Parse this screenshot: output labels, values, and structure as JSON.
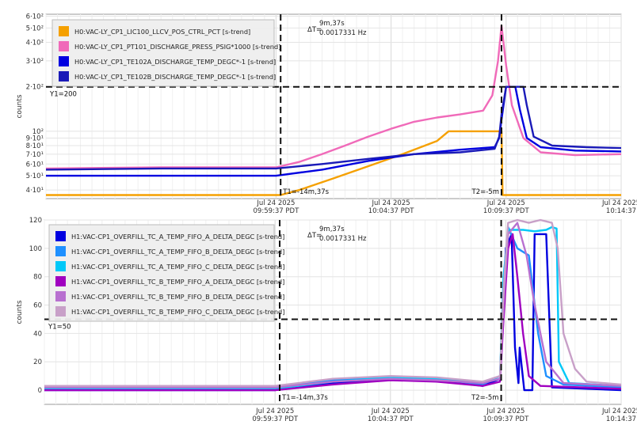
{
  "chart_data": [
    {
      "type": "line",
      "ylabel": "counts",
      "yscale": "log",
      "ylim": [
        35,
        620
      ],
      "x_ticks": [
        {
          "t": 20,
          "date": "Jul 24 2025",
          "time": "09:59:37 PDT"
        },
        {
          "t": 30,
          "date": "Jul 24 2025",
          "time": "10:04:37 PDT"
        },
        {
          "t": 40,
          "date": "Jul 24 2025",
          "time": "10:09:37 PDT"
        },
        {
          "t": 50,
          "date": "Jul 24 2025",
          "time": "10:14:37"
        }
      ],
      "y_ticks": [
        {
          "v": 40,
          "label": "4·10¹"
        },
        {
          "v": 50,
          "label": "5·10¹"
        },
        {
          "v": 60,
          "label": "6·10¹"
        },
        {
          "v": 70,
          "label": "7·10¹"
        },
        {
          "v": 80,
          "label": "8·10¹"
        },
        {
          "v": 90,
          "label": "9·10¹"
        },
        {
          "v": 100,
          "label": "10²"
        },
        {
          "v": 200,
          "label": "2·10²"
        },
        {
          "v": 300,
          "label": "3·10²"
        },
        {
          "v": 400,
          "label": "4·10²"
        },
        {
          "v": 500,
          "label": "5·10²"
        },
        {
          "v": 600,
          "label": "6·10²"
        }
      ],
      "grid": true,
      "legend_position": "top-left",
      "cursors": {
        "y1": {
          "value": 200,
          "label": "Y1=200"
        },
        "t1": {
          "t": 20.4,
          "label": "T1=-14m,37s"
        },
        "t2": {
          "t": 39.6,
          "label": "T2=-5m"
        },
        "delta_label": "ΔT=",
        "delta_time": "9m,37s",
        "delta_freq": "0.0017331 Hz"
      },
      "series": [
        {
          "name": "H0:VAC-LY_CP1_LIC100_LLCV_POS_CTRL_PCT [s-trend]",
          "color": "#f5a000",
          "points": [
            [
              0,
              37
            ],
            [
              20.4,
              37
            ],
            [
              22,
              40
            ],
            [
              25,
              48
            ],
            [
              28,
              58
            ],
            [
              31,
              70
            ],
            [
              34,
              86
            ],
            [
              35,
              100
            ],
            [
              39.6,
              100
            ],
            [
              39.7,
              37
            ],
            [
              50,
              37
            ]
          ]
        },
        {
          "name": "H0:VAC-LY_CP1_PT101_DISCHARGE_PRESS_PSIG*1000 [s-trend]",
          "color": "#f06ab9",
          "points": [
            [
              0,
              56
            ],
            [
              10,
              57
            ],
            [
              20,
              57
            ],
            [
              22,
              62
            ],
            [
              24,
              70
            ],
            [
              26,
              80
            ],
            [
              28,
              92
            ],
            [
              30,
              104
            ],
            [
              32,
              116
            ],
            [
              34,
              124
            ],
            [
              36,
              130
            ],
            [
              38,
              138
            ],
            [
              38.8,
              175
            ],
            [
              39.3,
              300
            ],
            [
              39.6,
              520
            ],
            [
              40,
              280
            ],
            [
              40.5,
              150
            ],
            [
              41.5,
              90
            ],
            [
              43,
              72
            ],
            [
              46,
              69
            ],
            [
              50,
              70
            ]
          ]
        },
        {
          "name": "H0:VAC-LY_CP1_TE102A_DISCHARGE_TEMP_DEGC*-1 [s-trend]",
          "color": "#0000e0",
          "points": [
            [
              0,
              50
            ],
            [
              10,
              50
            ],
            [
              20,
              50
            ],
            [
              24,
              55
            ],
            [
              28,
              63
            ],
            [
              32,
              70
            ],
            [
              36,
              75
            ],
            [
              39,
              78
            ],
            [
              39.4,
              90
            ],
            [
              39.6,
              120
            ],
            [
              40,
              200
            ],
            [
              40.8,
              200
            ],
            [
              41.2,
              140
            ],
            [
              41.8,
              90
            ],
            [
              43,
              78
            ],
            [
              46,
              74
            ],
            [
              50,
              73
            ]
          ]
        },
        {
          "name": "H0:VAC-LY_CP1_TE102B_DISCHARGE_TEMP_DEGC*-1 [s-trend]",
          "color": "#1a1ab8",
          "points": [
            [
              0,
              55
            ],
            [
              10,
              56
            ],
            [
              20,
              56
            ],
            [
              24,
              60
            ],
            [
              28,
              65
            ],
            [
              32,
              70
            ],
            [
              36,
              72
            ],
            [
              39,
              76
            ],
            [
              39.4,
              92
            ],
            [
              39.6,
              130
            ],
            [
              40,
              200
            ],
            [
              41.5,
              200
            ],
            [
              41.8,
              150
            ],
            [
              42.4,
              92
            ],
            [
              44,
              80
            ],
            [
              47,
              78
            ],
            [
              50,
              77
            ]
          ]
        }
      ]
    },
    {
      "type": "line",
      "ylabel": "counts",
      "ylim": [
        -10,
        120
      ],
      "x_ticks": [
        {
          "t": 20,
          "date": "Jul 24 2025",
          "time": "09:59:37 PDT"
        },
        {
          "t": 30,
          "date": "Jul 24 2025",
          "time": "10:04:37 PDT"
        },
        {
          "t": 40,
          "date": "Jul 24 2025",
          "time": "10:09:37 PDT"
        },
        {
          "t": 50,
          "date": "Jul 24 2025",
          "time": "10:14:37"
        }
      ],
      "y_ticks": [
        {
          "v": 0,
          "label": "0"
        },
        {
          "v": 20,
          "label": "20"
        },
        {
          "v": 40,
          "label": "40"
        },
        {
          "v": 60,
          "label": "60"
        },
        {
          "v": 80,
          "label": "80"
        },
        {
          "v": 100,
          "label": "100"
        },
        {
          "v": 120,
          "label": "120"
        }
      ],
      "grid": true,
      "legend_position": "top-left",
      "cursors": {
        "y1": {
          "value": 50,
          "label": "Y1=50"
        },
        "t1": {
          "t": 20.4,
          "label": "T1=-14m,37s"
        },
        "t2": {
          "t": 39.6,
          "label": "T2=-5m"
        },
        "delta_label": "ΔT=",
        "delta_time": "9m,37s",
        "delta_freq": "0.0017331 Hz"
      },
      "series": [
        {
          "name": "H1:VAC-CP1_OVERFILL_TC_A_TEMP_FIFO_A_DELTA_DEGC [s-trend]",
          "color": "#0000e0",
          "points": [
            [
              0,
              0
            ],
            [
              20,
              0
            ],
            [
              25,
              5
            ],
            [
              30,
              8
            ],
            [
              34,
              7
            ],
            [
              38,
              3
            ],
            [
              39.5,
              8
            ],
            [
              39.8,
              60
            ],
            [
              40,
              100
            ],
            [
              40.5,
              110
            ],
            [
              40.8,
              30
            ],
            [
              41.1,
              5
            ],
            [
              41.2,
              30
            ],
            [
              41.6,
              0
            ],
            [
              42.3,
              0
            ],
            [
              42.5,
              110
            ],
            [
              43.5,
              110
            ],
            [
              44,
              2
            ],
            [
              50,
              0
            ]
          ]
        },
        {
          "name": "H1:VAC-CP1_OVERFILL_TC_A_TEMP_FIFO_B_DELTA_DEGC [s-trend]",
          "color": "#1e90ff",
          "points": [
            [
              0,
              2
            ],
            [
              20,
              2
            ],
            [
              25,
              7
            ],
            [
              30,
              9
            ],
            [
              34,
              8
            ],
            [
              38,
              4
            ],
            [
              39.5,
              10
            ],
            [
              39.8,
              70
            ],
            [
              40.2,
              115
            ],
            [
              41,
              100
            ],
            [
              42,
              95
            ],
            [
              42.8,
              40
            ],
            [
              43.5,
              10
            ],
            [
              45,
              4
            ],
            [
              50,
              2
            ]
          ]
        },
        {
          "name": "H1:VAC-CP1_OVERFILL_TC_A_TEMP_FIFO_C_DELTA_DEGC [s-trend]",
          "color": "#00c8f8",
          "points": [
            [
              0,
              1
            ],
            [
              20,
              1
            ],
            [
              25,
              6
            ],
            [
              30,
              9
            ],
            [
              34,
              8
            ],
            [
              38,
              5
            ],
            [
              39.5,
              10
            ],
            [
              39.8,
              80
            ],
            [
              40.2,
              113
            ],
            [
              41.5,
              113
            ],
            [
              42.5,
              112
            ],
            [
              43.5,
              113
            ],
            [
              44,
              115
            ],
            [
              44.4,
              114
            ],
            [
              44.6,
              20
            ],
            [
              45.5,
              5
            ],
            [
              50,
              3
            ]
          ]
        },
        {
          "name": "H1:VAC-CP1_OVERFILL_TC_B_TEMP_FIFO_A_DELTA_DEGC [s-trend]",
          "color": "#a000c0",
          "points": [
            [
              0,
              0
            ],
            [
              20,
              0
            ],
            [
              25,
              4
            ],
            [
              30,
              7
            ],
            [
              34,
              6
            ],
            [
              38,
              3
            ],
            [
              39.5,
              6
            ],
            [
              39.8,
              50
            ],
            [
              40.2,
              100
            ],
            [
              40.6,
              110
            ],
            [
              41,
              80
            ],
            [
              41.5,
              40
            ],
            [
              42,
              10
            ],
            [
              43,
              3
            ],
            [
              50,
              1
            ]
          ]
        },
        {
          "name": "H1:VAC-CP1_OVERFILL_TC_B_TEMP_FIFO_B_DELTA_DEGC [s-trend]",
          "color": "#b870d0",
          "points": [
            [
              0,
              2
            ],
            [
              20,
              2
            ],
            [
              25,
              6
            ],
            [
              30,
              8
            ],
            [
              34,
              7
            ],
            [
              38,
              5
            ],
            [
              39.5,
              8
            ],
            [
              39.8,
              60
            ],
            [
              40.2,
              110
            ],
            [
              41,
              118
            ],
            [
              41.8,
              95
            ],
            [
              42.5,
              60
            ],
            [
              43.5,
              20
            ],
            [
              45,
              5
            ],
            [
              50,
              3
            ]
          ]
        },
        {
          "name": "H1:VAC-CP1_OVERFILL_TC_B_TEMP_FIFO_C_DELTA_DEGC [s-trend]",
          "color": "#c8a0c8",
          "points": [
            [
              0,
              3
            ],
            [
              20,
              3
            ],
            [
              25,
              8
            ],
            [
              30,
              10
            ],
            [
              34,
              9
            ],
            [
              38,
              6
            ],
            [
              39.5,
              10
            ],
            [
              39.8,
              70
            ],
            [
              40.2,
              118
            ],
            [
              41,
              120
            ],
            [
              42,
              118
            ],
            [
              43,
              120
            ],
            [
              44,
              118
            ],
            [
              44.5,
              100
            ],
            [
              45,
              40
            ],
            [
              46,
              15
            ],
            [
              47,
              6
            ],
            [
              50,
              4
            ]
          ]
        }
      ]
    }
  ]
}
